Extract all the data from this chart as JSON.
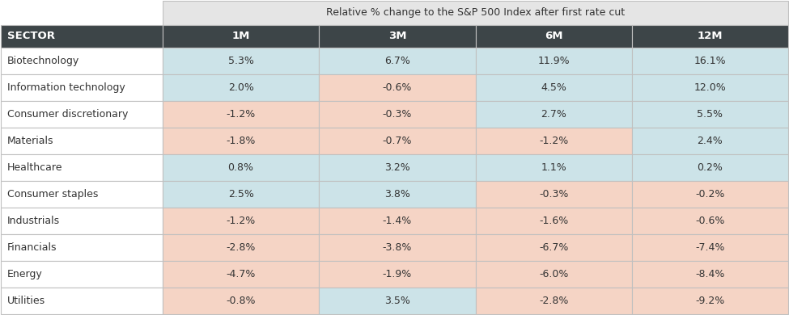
{
  "title": "Relative % change to the S&P 500 Index after first rate cut",
  "header": [
    "SECTOR",
    "1M",
    "3M",
    "6M",
    "12M"
  ],
  "rows": [
    [
      "Biotechnology",
      "5.3%",
      "6.7%",
      "11.9%",
      "16.1%"
    ],
    [
      "Information technology",
      "2.0%",
      "-0.6%",
      "4.5%",
      "12.0%"
    ],
    [
      "Consumer discretionary",
      "-1.2%",
      "-0.3%",
      "2.7%",
      "5.5%"
    ],
    [
      "Materials",
      "-1.8%",
      "-0.7%",
      "-1.2%",
      "2.4%"
    ],
    [
      "Healthcare",
      "0.8%",
      "3.2%",
      "1.1%",
      "0.2%"
    ],
    [
      "Consumer staples",
      "2.5%",
      "3.8%",
      "-0.3%",
      "-0.2%"
    ],
    [
      "Industrials",
      "-1.2%",
      "-1.4%",
      "-1.6%",
      "-0.6%"
    ],
    [
      "Financials",
      "-2.8%",
      "-3.8%",
      "-6.7%",
      "-7.4%"
    ],
    [
      "Energy",
      "-4.7%",
      "-1.9%",
      "-6.0%",
      "-8.4%"
    ],
    [
      "Utilities",
      "-0.8%",
      "3.5%",
      "-2.8%",
      "-9.2%"
    ]
  ],
  "cell_colors": [
    [
      "white",
      "teal",
      "teal",
      "teal",
      "teal"
    ],
    [
      "white",
      "teal",
      "salmon",
      "teal",
      "teal"
    ],
    [
      "white",
      "salmon",
      "salmon",
      "teal",
      "teal"
    ],
    [
      "white",
      "salmon",
      "salmon",
      "salmon",
      "teal"
    ],
    [
      "white",
      "teal",
      "teal",
      "teal",
      "teal"
    ],
    [
      "white",
      "teal",
      "teal",
      "salmon",
      "salmon"
    ],
    [
      "white",
      "salmon",
      "salmon",
      "salmon",
      "salmon"
    ],
    [
      "white",
      "salmon",
      "salmon",
      "salmon",
      "salmon"
    ],
    [
      "white",
      "salmon",
      "salmon",
      "salmon",
      "salmon"
    ],
    [
      "white",
      "salmon",
      "teal",
      "salmon",
      "salmon"
    ]
  ],
  "teal_color": "#cce3e8",
  "salmon_color": "#f5d4c5",
  "white_color": "#ffffff",
  "header_bg": "#3d4548",
  "header_text": "#ffffff",
  "title_bg": "#e5e5e5",
  "title_text": "#333333",
  "border_color": "#c0c0c0",
  "text_color": "#333333",
  "sector_fontsize": 9,
  "data_fontsize": 9,
  "header_fontsize": 9.5
}
